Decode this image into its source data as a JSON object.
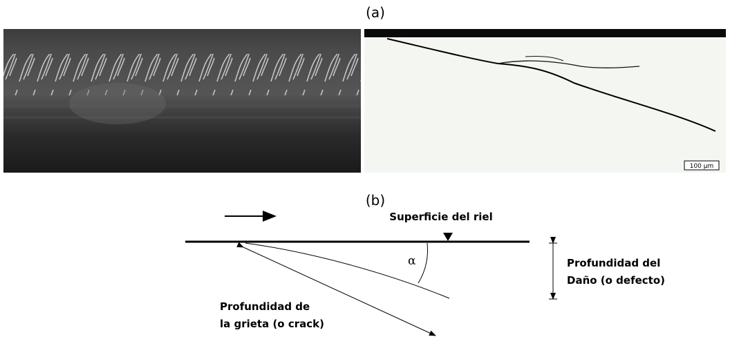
{
  "panel_a": {
    "label": "(a)",
    "scale_bar": "100 µm"
  },
  "panel_b": {
    "label": "(b)",
    "surface": "Superficie del riel",
    "angle": "α",
    "damage_depth": [
      "Profundidad del",
      "Daño (o defecto)"
    ],
    "crack_depth": [
      "Profundidad de",
      "la grieta (o crack)"
    ]
  }
}
